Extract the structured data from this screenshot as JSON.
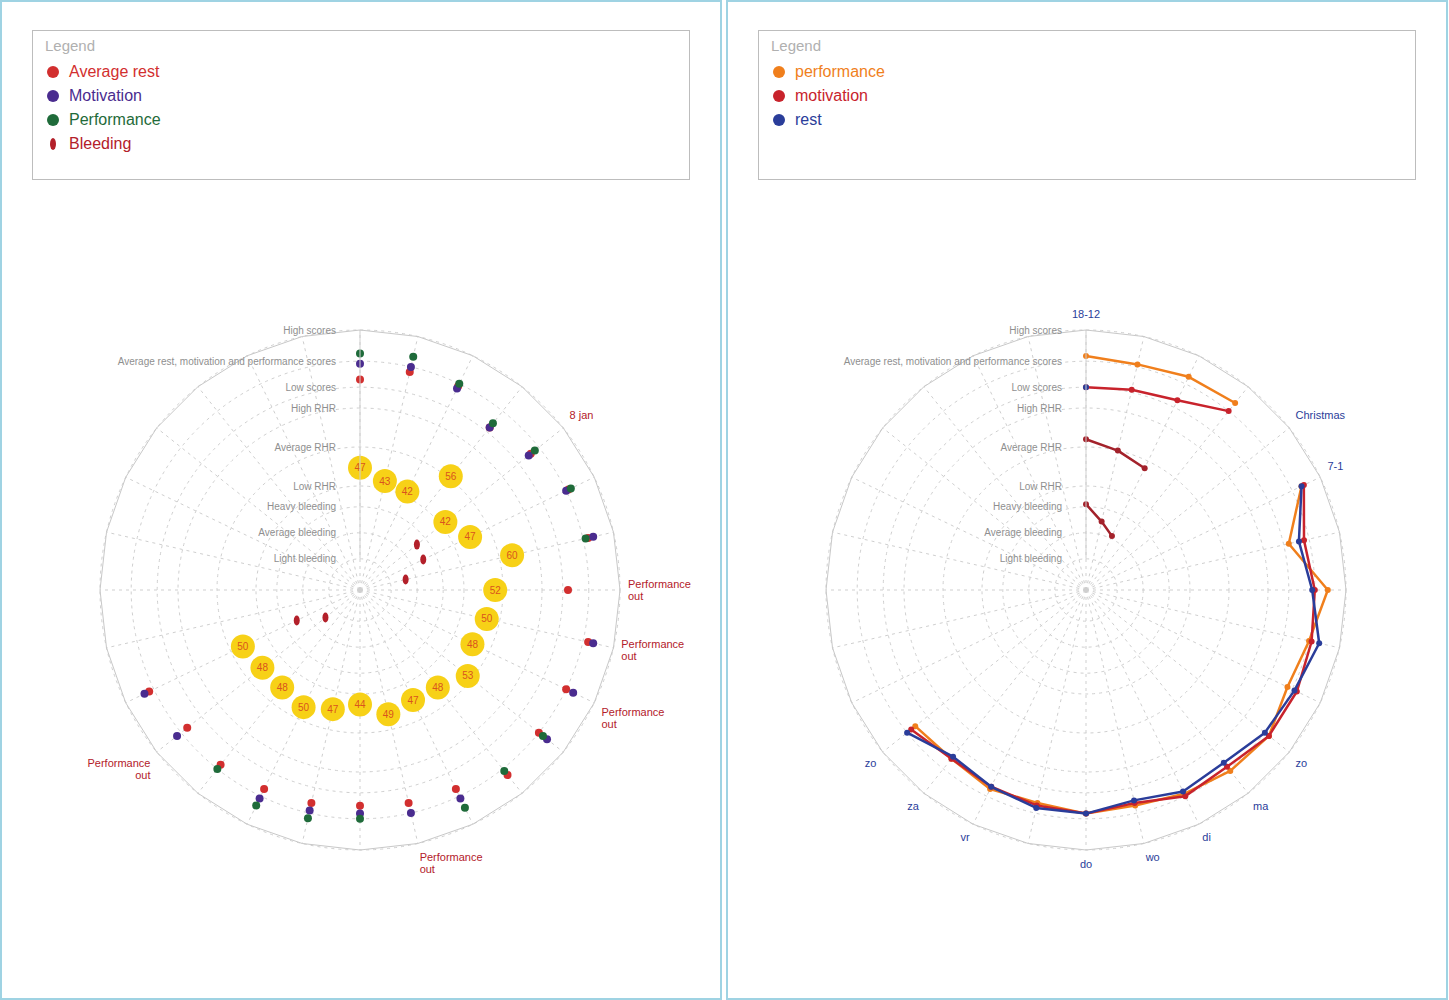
{
  "chart_data": [
    {
      "type": "radar",
      "legend_title": "Legend",
      "legend": "top",
      "grid": true,
      "categories": [
        null,
        null,
        null,
        null,
        "8 jan",
        null,
        null,
        "Performance out",
        "Performance out",
        "Performance out",
        null,
        null,
        null,
        "Performance out",
        null,
        null,
        null,
        null,
        "Performance out",
        null,
        null,
        null,
        null,
        null,
        null,
        null,
        null,
        null
      ],
      "ylim": [
        0,
        100
      ],
      "yticks": [
        {
          "value": 12,
          "label": "Light bleeding"
        },
        {
          "value": 22,
          "label": "Average bleeding"
        },
        {
          "value": 32,
          "label": "Heavy bleeding"
        },
        {
          "value": 40,
          "label": "Low RHR"
        },
        {
          "value": 55,
          "label": "Average RHR"
        },
        {
          "value": 70,
          "label": "High RHR"
        },
        {
          "value": 78,
          "label": "Low scores"
        },
        {
          "value": 88,
          "label": "Average rest, motivation and performance scores"
        },
        {
          "value": 100,
          "label": "High scores"
        }
      ],
      "series": [
        {
          "name": "Average rest",
          "color": "#d22f2f",
          "marker": "circle",
          "line_style": "none",
          "values": [
            81,
            86,
            87,
            80,
            84,
            89,
            90,
            80,
            90,
            88,
            88,
            91,
            85,
            84,
            83,
            84,
            85,
            86,
            85,
            90,
            null,
            null,
            null,
            null,
            null,
            null,
            null,
            null
          ]
        },
        {
          "name": "Motivation",
          "color": "#4a2c8f",
          "marker": "circle",
          "line_style": "none",
          "values": [
            87,
            88,
            86,
            80,
            83,
            88,
            92,
            null,
            92,
            91,
            92,
            null,
            89,
            88,
            86,
            87,
            89,
            null,
            90,
            92,
            null,
            null,
            null,
            null,
            null,
            null,
            null,
            null
          ]
        },
        {
          "name": "Performance",
          "color": "#1f6b3a",
          "marker": "circle",
          "line_style": "none",
          "values": [
            91,
            92,
            88,
            82,
            86,
            90,
            89,
            null,
            null,
            null,
            90,
            89,
            93,
            null,
            88,
            90,
            92,
            88,
            null,
            null,
            null,
            null,
            null,
            null,
            null,
            null,
            null,
            null
          ]
        },
        {
          "name": "Bleeding",
          "color": "#b3202a",
          "marker": "ellipse",
          "line_style": "none",
          "values": [
            null,
            null,
            null,
            null,
            28,
            27,
            18,
            null,
            null,
            null,
            null,
            null,
            null,
            null,
            null,
            null,
            null,
            null,
            17,
            27,
            null,
            null,
            null,
            null,
            null,
            null,
            null,
            null
          ]
        }
      ],
      "extra_series": [
        {
          "color": "#f7d117",
          "marker": "circle",
          "line_style": "none",
          "data_labels": true,
          "values": [
            47,
            43,
            42,
            56,
            42,
            47,
            60,
            52,
            50,
            48,
            53,
            48,
            47,
            49,
            44,
            47,
            50,
            48,
            48,
            50,
            null,
            null,
            null,
            null,
            null,
            null,
            null,
            null
          ]
        }
      ]
    },
    {
      "type": "radar",
      "legend_title": "Legend",
      "legend": "top",
      "grid": true,
      "categories": [
        "18-12",
        null,
        null,
        null,
        "Christmas",
        "7-1",
        null,
        null,
        null,
        null,
        "zo",
        "ma",
        "di",
        "wo",
        "do",
        null,
        "vr",
        "za",
        "zo",
        null,
        null,
        null,
        null,
        null,
        null,
        null,
        null,
        null
      ],
      "ylim": [
        0,
        100
      ],
      "yticks": [
        {
          "value": 12,
          "label": "Light bleeding"
        },
        {
          "value": 22,
          "label": "Average bleeding"
        },
        {
          "value": 32,
          "label": "Heavy bleeding"
        },
        {
          "value": 40,
          "label": "Low RHR"
        },
        {
          "value": 55,
          "label": "Average RHR"
        },
        {
          "value": 70,
          "label": "High RHR"
        },
        {
          "value": 78,
          "label": "Low scores"
        },
        {
          "value": 88,
          "label": "Average rest, motivation and performance scores"
        },
        {
          "value": 100,
          "label": "High scores"
        }
      ],
      "series": [
        {
          "name": "performance",
          "color": "#f07f1c",
          "marker": "circle",
          "line_style": "solid",
          "values": [
            90,
            89,
            91,
            92,
            null,
            92,
            80,
            93,
            88,
            86,
            90,
            89,
            87,
            85,
            86,
            84,
            85,
            83,
            84,
            null,
            null,
            null,
            null,
            null,
            null,
            null,
            null,
            null
          ]
        },
        {
          "name": "motivation",
          "color": "#c8232c",
          "marker": "circle",
          "line_style": "solid",
          "values": [
            78,
            79,
            81,
            88,
            null,
            93,
            86,
            88,
            89,
            90,
            90,
            87,
            88,
            84,
            86,
            85,
            84,
            83,
            86,
            null,
            null,
            null,
            null,
            null,
            null,
            null,
            null,
            null
          ]
        },
        {
          "name": "rest",
          "color": "#2a3d9a",
          "marker": "circle",
          "line_style": "solid",
          "values": [
            78,
            null,
            null,
            null,
            null,
            92,
            84,
            87,
            92,
            89,
            88,
            85,
            86,
            83,
            86,
            86,
            84,
            82,
            88,
            null,
            null,
            null,
            null,
            null,
            null,
            null,
            null,
            null
          ]
        }
      ],
      "extra_series": [
        {
          "color": "#a3222b",
          "marker": "circle",
          "line_style": "solid",
          "values": [
            58,
            55,
            52,
            null,
            null,
            null,
            null,
            null,
            null,
            null,
            null,
            null,
            null,
            null,
            null,
            null,
            null,
            null,
            null,
            null,
            null,
            null,
            null,
            null,
            null,
            null,
            null,
            null
          ]
        },
        {
          "color": "#a3222b",
          "marker": "circle",
          "line_style": "solid",
          "values": [
            33,
            27,
            23,
            null,
            null,
            null,
            null,
            null,
            null,
            null,
            null,
            null,
            null,
            null,
            null,
            null,
            null,
            null,
            null,
            null,
            null,
            null,
            null,
            null,
            null,
            null,
            null,
            null
          ]
        }
      ]
    }
  ]
}
